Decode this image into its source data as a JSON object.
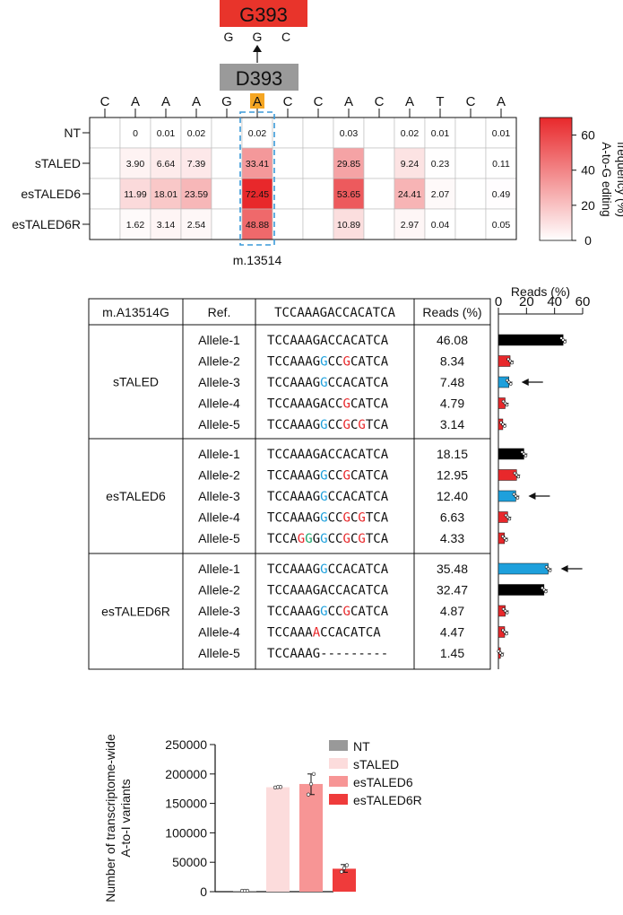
{
  "mutation": {
    "top_label": "G393",
    "top_codon": [
      "G",
      "G",
      "C"
    ],
    "bottom_label": "D393"
  },
  "heatmap": {
    "sequence": [
      "C",
      "A",
      "A",
      "A",
      "G",
      "A",
      "C",
      "C",
      "A",
      "C",
      "A",
      "T",
      "C",
      "A"
    ],
    "highlight_index": 5,
    "rows": [
      "NT",
      "sTALED",
      "esTALED6",
      "esTALED6R"
    ],
    "values": [
      [
        null,
        0,
        0.01,
        0.02,
        null,
        0.02,
        null,
        null,
        0.03,
        null,
        0.02,
        0.01,
        null,
        0.01
      ],
      [
        null,
        3.9,
        6.64,
        7.39,
        null,
        33.41,
        null,
        null,
        29.85,
        null,
        9.24,
        0.23,
        null,
        0.11
      ],
      [
        null,
        11.99,
        18.01,
        23.59,
        null,
        72.45,
        null,
        null,
        53.65,
        null,
        24.41,
        2.07,
        null,
        0.49
      ],
      [
        null,
        1.62,
        3.14,
        2.54,
        null,
        48.88,
        null,
        null,
        10.89,
        null,
        2.97,
        0.04,
        null,
        0.05
      ]
    ],
    "labels": [
      [
        "",
        "0",
        "0.01",
        "0.02",
        "",
        "0.02",
        "",
        "",
        "0.03",
        "",
        "0.02",
        "0.01",
        "",
        "0.01"
      ],
      [
        "",
        "3.90",
        "6.64",
        "7.39",
        "",
        "33.41",
        "",
        "",
        "29.85",
        "",
        "9.24",
        "0.23",
        "",
        "0.11"
      ],
      [
        "",
        "11.99",
        "18.01",
        "23.59",
        "",
        "72.45",
        "",
        "",
        "53.65",
        "",
        "24.41",
        "2.07",
        "",
        "0.49"
      ],
      [
        "",
        "1.62",
        "3.14",
        "2.54",
        "",
        "48.88",
        "",
        "",
        "10.89",
        "",
        "2.97",
        "0.04",
        "",
        "0.05"
      ]
    ],
    "site_label": "m.13514",
    "colorbar": {
      "min": 0,
      "max": 70,
      "ticks": [
        "0",
        "20",
        "40",
        "60"
      ],
      "tick_values": [
        0,
        20,
        40,
        60
      ],
      "label_line1": "A-to-G editing",
      "label_line2": "frequency (%)"
    },
    "colors": {
      "low": "#ffffff",
      "high": "#e8282b",
      "highlight": "#f5a623",
      "dash": "#3a9ad9"
    }
  },
  "allele_table": {
    "headers": {
      "site": "m.A13514G",
      "ref": "Ref.",
      "seq": "TCCAAAGACCACATCA",
      "reads": "Reads (%)"
    },
    "groups": [
      {
        "name": "sTALED",
        "alleles": [
          {
            "label": "Allele-1",
            "seq": "TCCAAAGACCACATCA",
            "reads": "46.08",
            "value": 46.08,
            "bar": "black",
            "arrow": false,
            "colors": {}
          },
          {
            "label": "Allele-2",
            "seq": "TCCAAAGGCCGCATCA",
            "reads": "8.34",
            "value": 8.34,
            "bar": "red",
            "arrow": false,
            "colors": {
              "7": "blue",
              "10": "red"
            }
          },
          {
            "label": "Allele-3",
            "seq": "TCCAAAGGCCACATCA",
            "reads": "7.48",
            "value": 7.48,
            "bar": "blue",
            "arrow": true,
            "colors": {
              "7": "blue"
            }
          },
          {
            "label": "Allele-4",
            "seq": "TCCAAAGACCGCATCA",
            "reads": "4.79",
            "value": 4.79,
            "bar": "red",
            "arrow": false,
            "colors": {
              "10": "red"
            }
          },
          {
            "label": "Allele-5",
            "seq": "TCCAAAGGCCGCGTCA",
            "reads": "3.14",
            "value": 3.14,
            "bar": "red",
            "arrow": false,
            "colors": {
              "7": "blue",
              "10": "red",
              "12": "red"
            }
          }
        ]
      },
      {
        "name": "esTALED6",
        "alleles": [
          {
            "label": "Allele-1",
            "seq": "TCCAAAGACCACATCA",
            "reads": "18.15",
            "value": 18.15,
            "bar": "black",
            "arrow": false,
            "colors": {}
          },
          {
            "label": "Allele-2",
            "seq": "TCCAAAGGCCGCATCA",
            "reads": "12.95",
            "value": 12.95,
            "bar": "red",
            "arrow": false,
            "colors": {
              "7": "blue",
              "10": "red"
            }
          },
          {
            "label": "Allele-3",
            "seq": "TCCAAAGGCCACATCA",
            "reads": "12.40",
            "value": 12.4,
            "bar": "blue",
            "arrow": true,
            "colors": {
              "7": "blue"
            }
          },
          {
            "label": "Allele-4",
            "seq": "TCCAAAGGCCGCGTCA",
            "reads": "6.63",
            "value": 6.63,
            "bar": "red",
            "arrow": false,
            "colors": {
              "7": "blue",
              "10": "red",
              "12": "red"
            }
          },
          {
            "label": "Allele-5",
            "seq": "TCCAGGGGCCGCGTCA",
            "reads": "4.33",
            "value": 4.33,
            "bar": "red",
            "arrow": false,
            "colors": {
              "4": "red",
              "5": "green",
              "7": "blue",
              "10": "red",
              "12": "red"
            }
          }
        ]
      },
      {
        "name": "esTALED6R",
        "alleles": [
          {
            "label": "Allele-1",
            "seq": "TCCAAAGGCCACATCA",
            "reads": "35.48",
            "value": 35.48,
            "bar": "blue",
            "arrow": true,
            "colors": {
              "7": "blue"
            }
          },
          {
            "label": "Allele-2",
            "seq": "TCCAAAGACCACATCA",
            "reads": "32.47",
            "value": 32.47,
            "bar": "black",
            "arrow": false,
            "colors": {}
          },
          {
            "label": "Allele-3",
            "seq": "TCCAAAGGCCGCATCA",
            "reads": "4.87",
            "value": 4.87,
            "bar": "red",
            "arrow": false,
            "colors": {
              "7": "blue",
              "10": "red"
            }
          },
          {
            "label": "Allele-4",
            "seq": "TCCAAAACCACATCA",
            "reads": "4.47",
            "value": 4.47,
            "bar": "red",
            "arrow": false,
            "colors": {
              "6": "red"
            }
          },
          {
            "label": "Allele-5",
            "seq": "TCCAAAG---------",
            "reads": "1.45",
            "value": 1.45,
            "bar": "red",
            "arrow": false,
            "colors": {}
          }
        ]
      }
    ],
    "bar_axis": {
      "title": "Reads (%)",
      "min": 0,
      "max": 60,
      "ticks": [
        "0",
        "20",
        "40",
        "60"
      ],
      "tick_values": [
        0,
        20,
        40,
        60
      ]
    },
    "colors": {
      "red": "#e8282b",
      "blue": "#1ea0dc",
      "green": "#1aa36b",
      "black": "#000000"
    }
  },
  "chart_data": {
    "type": "bar",
    "categories": [
      "NT",
      "sTALED",
      "esTALED6",
      "esTALED6R"
    ],
    "values": [
      1000,
      177500,
      183000,
      39000
    ],
    "ylabel_line1": "Number of transcriptome-wide",
    "ylabel_line2": "A-to-I variants",
    "ylim": [
      0,
      250000
    ],
    "yticks": [
      0,
      50000,
      100000,
      150000,
      200000,
      250000
    ],
    "ytick_labels": [
      "0",
      "50000",
      "100000",
      "150000",
      "200000",
      "250000"
    ],
    "legend": [
      "NT",
      "sTALED",
      "esTALED6",
      "esTALED6R"
    ],
    "colors": [
      "#999999",
      "#fcdcdc",
      "#f79595",
      "#ef3b3b"
    ]
  }
}
